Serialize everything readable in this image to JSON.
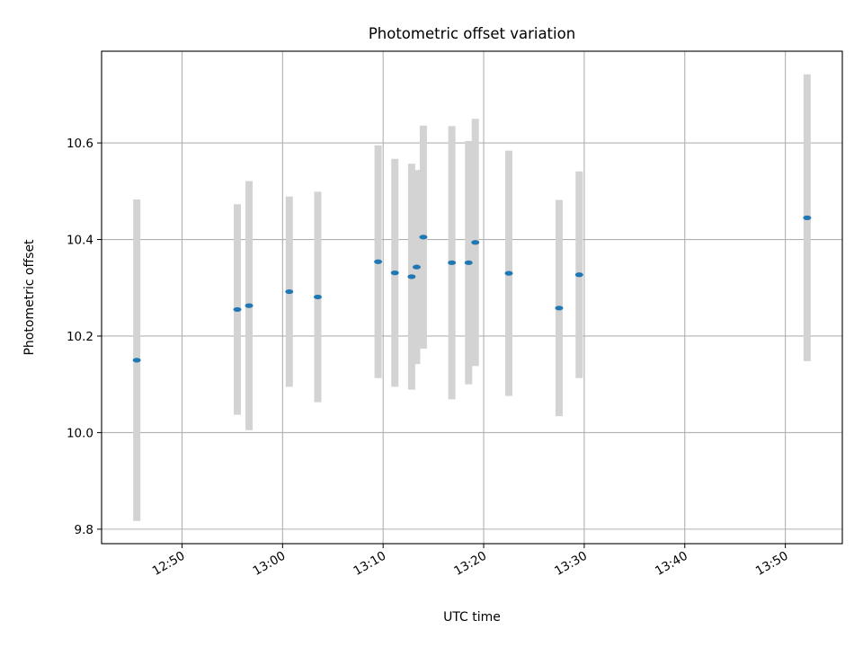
{
  "chart_data": {
    "type": "scatter",
    "title": "Photometric offset variation",
    "xlabel": "UTC time",
    "ylabel": "Photometric offset",
    "x_axis": "time",
    "xlim": [
      "12:42:00",
      "13:55:40"
    ],
    "ylim": [
      9.77,
      10.79
    ],
    "xticks": [
      "12:50",
      "13:00",
      "13:10",
      "13:20",
      "13:30",
      "13:40",
      "13:50"
    ],
    "yticks": [
      9.8,
      10.0,
      10.2,
      10.4,
      10.6
    ],
    "grid": true,
    "colors": {
      "point": "#1f77b4",
      "error_bar": "#d3d3d3"
    },
    "points": [
      {
        "x": "12:45:30",
        "y": 10.15,
        "yerr_low": 9.817,
        "yerr_high": 10.483
      },
      {
        "x": "12:55:30",
        "y": 10.255,
        "yerr_low": 10.037,
        "yerr_high": 10.473
      },
      {
        "x": "12:56:40",
        "y": 10.263,
        "yerr_low": 10.005,
        "yerr_high": 10.521
      },
      {
        "x": "13:00:40",
        "y": 10.292,
        "yerr_low": 10.095,
        "yerr_high": 10.489
      },
      {
        "x": "13:03:30",
        "y": 10.281,
        "yerr_low": 10.063,
        "yerr_high": 10.499
      },
      {
        "x": "13:09:30",
        "y": 10.354,
        "yerr_low": 10.113,
        "yerr_high": 10.595
      },
      {
        "x": "13:11:10",
        "y": 10.331,
        "yerr_low": 10.095,
        "yerr_high": 10.567
      },
      {
        "x": "13:12:50",
        "y": 10.323,
        "yerr_low": 10.089,
        "yerr_high": 10.557
      },
      {
        "x": "13:13:20",
        "y": 10.343,
        "yerr_low": 10.142,
        "yerr_high": 10.544
      },
      {
        "x": "13:14:00",
        "y": 10.405,
        "yerr_low": 10.174,
        "yerr_high": 10.636
      },
      {
        "x": "13:16:50",
        "y": 10.352,
        "yerr_low": 10.069,
        "yerr_high": 10.635
      },
      {
        "x": "13:18:30",
        "y": 10.352,
        "yerr_low": 10.1,
        "yerr_high": 10.604
      },
      {
        "x": "13:19:10",
        "y": 10.394,
        "yerr_low": 10.138,
        "yerr_high": 10.65
      },
      {
        "x": "13:22:30",
        "y": 10.33,
        "yerr_low": 10.076,
        "yerr_high": 10.584
      },
      {
        "x": "13:27:30",
        "y": 10.258,
        "yerr_low": 10.034,
        "yerr_high": 10.482
      },
      {
        "x": "13:29:30",
        "y": 10.327,
        "yerr_low": 10.113,
        "yerr_high": 10.541
      },
      {
        "x": "13:52:10",
        "y": 10.445,
        "yerr_low": 10.148,
        "yerr_high": 10.742
      }
    ]
  }
}
